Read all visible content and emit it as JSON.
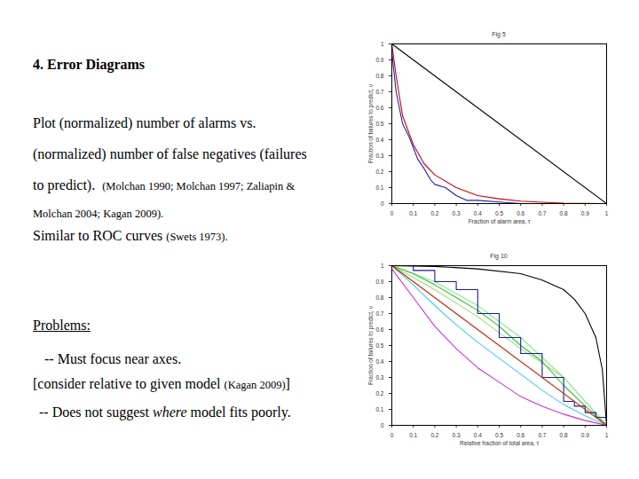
{
  "slide": {
    "heading": "4. Error Diagrams",
    "lines": [
      [
        {
          "text": "Plot (normalized) number of alarms vs."
        }
      ],
      [
        {
          "text": "(normalized) number of false negatives (failures"
        }
      ],
      [
        {
          "text": "to predict).  "
        },
        {
          "text": "(Molchan 1990; Molchan 1997; Zaliapin &",
          "small": true
        }
      ],
      [
        {
          "text": "Molchan 2004; Kagan 2009).",
          "small": true
        }
      ],
      [
        {
          "text": "Similar to ROC curves "
        },
        {
          "text": "(Swets 1973).",
          "small": true
        }
      ],
      [
        {
          "text": "Problems:",
          "underline": true
        }
      ],
      [
        {
          "text": "-- Must focus near axes."
        }
      ],
      [
        {
          "text": "[consider relative to given model "
        },
        {
          "text": "(Kagan 2009)",
          "small": true
        },
        {
          "text": "]"
        }
      ],
      [
        {
          "text": "-- Does not suggest "
        },
        {
          "text": "where",
          "italic": true
        },
        {
          "text": " model fits poorly."
        }
      ]
    ]
  },
  "chart_data": [
    {
      "type": "line",
      "title": "Fig 5",
      "x_label": "Fraction of alarm area, τ",
      "y_label": "Fraction of failures to predict, ν",
      "xlim": [
        0,
        1
      ],
      "ylim": [
        0,
        1
      ],
      "xticks": [
        0,
        0.1,
        0.2,
        0.3,
        0.4,
        0.5,
        0.6,
        0.7,
        0.8,
        0.9,
        1
      ],
      "yticks": [
        0,
        0.1,
        0.2,
        0.3,
        0.4,
        0.5,
        0.6,
        0.7,
        0.8,
        0.9,
        1
      ],
      "grid": false,
      "series": [
        {
          "color": "#000000",
          "x": [
            0,
            1
          ],
          "values": [
            1,
            0
          ]
        },
        {
          "color": "#cc0000",
          "x": [
            0,
            0.02,
            0.05,
            0.1,
            0.15,
            0.2,
            0.3,
            0.4,
            0.5,
            0.6,
            0.7,
            0.8,
            1
          ],
          "values": [
            1,
            0.8,
            0.55,
            0.37,
            0.25,
            0.18,
            0.1,
            0.05,
            0.03,
            0.015,
            0.008,
            0.003,
            0
          ]
        },
        {
          "color": "#1f1fb4",
          "x": [
            0,
            0.02,
            0.05,
            0.08,
            0.1,
            0.12,
            0.15,
            0.18,
            0.2,
            0.25,
            0.3,
            0.35,
            0.4,
            0.5,
            0.6,
            1
          ],
          "values": [
            0.95,
            0.7,
            0.5,
            0.42,
            0.35,
            0.28,
            0.22,
            0.15,
            0.12,
            0.1,
            0.05,
            0.02,
            0.02,
            0.01,
            0,
            0
          ]
        }
      ]
    },
    {
      "type": "line",
      "title": "Fig 10",
      "x_label": "Relative fraction of total area, τ",
      "y_label": "Fraction of failures to predict, ν",
      "xlim": [
        0,
        1
      ],
      "ylim": [
        0,
        1
      ],
      "xticks": [
        0,
        0.1,
        0.2,
        0.3,
        0.4,
        0.5,
        0.6,
        0.7,
        0.8,
        0.9,
        1
      ],
      "yticks": [
        0,
        0.1,
        0.2,
        0.3,
        0.4,
        0.5,
        0.6,
        0.7,
        0.8,
        0.9,
        1
      ],
      "grid": false,
      "series": [
        {
          "color": "#99dd77",
          "x": [
            0,
            0.2,
            0.4,
            0.6,
            0.8,
            0.9,
            1
          ],
          "values": [
            1,
            0.85,
            0.68,
            0.48,
            0.3,
            0.15,
            0
          ]
        },
        {
          "color": "#88ee88",
          "x": [
            0,
            0.2,
            0.4,
            0.6,
            0.8,
            1
          ],
          "values": [
            1,
            0.9,
            0.75,
            0.55,
            0.3,
            0
          ]
        },
        {
          "color": "#33bb33",
          "x": [
            0,
            0.1,
            0.2,
            0.3,
            0.4,
            0.5,
            0.6,
            0.7,
            0.8,
            0.9,
            1
          ],
          "values": [
            1,
            0.95,
            0.88,
            0.8,
            0.72,
            0.62,
            0.5,
            0.4,
            0.25,
            0.12,
            0
          ]
        },
        {
          "color": "#44ccee",
          "x": [
            0,
            0.1,
            0.2,
            0.3,
            0.4,
            0.5,
            0.6,
            0.7,
            0.8,
            0.9,
            1
          ],
          "values": [
            1,
            0.88,
            0.75,
            0.63,
            0.52,
            0.42,
            0.32,
            0.22,
            0.13,
            0.06,
            0
          ]
        },
        {
          "color": "#cc33cc",
          "x": [
            0,
            0.1,
            0.2,
            0.3,
            0.4,
            0.5,
            0.6,
            0.7,
            0.8,
            0.9,
            1
          ],
          "values": [
            0.98,
            0.8,
            0.62,
            0.48,
            0.36,
            0.27,
            0.18,
            0.12,
            0.07,
            0.03,
            0
          ]
        },
        {
          "color": "#1a1aa0",
          "line_style": "step",
          "x": [
            0,
            0.1,
            0.2,
            0.3,
            0.4,
            0.5,
            0.6,
            0.7,
            0.8,
            0.85,
            0.9,
            0.95,
            1
          ],
          "values": [
            1,
            0.97,
            0.9,
            0.85,
            0.7,
            0.55,
            0.45,
            0.3,
            0.15,
            0.12,
            0.08,
            0.05,
            0
          ]
        },
        {
          "color": "#cc2200",
          "x": [
            0,
            1
          ],
          "values": [
            1,
            0
          ]
        },
        {
          "color": "#000000",
          "x": [
            0,
            0.2,
            0.4,
            0.6,
            0.7,
            0.8,
            0.85,
            0.9,
            0.95,
            0.98,
            1
          ],
          "values": [
            1,
            0.995,
            0.98,
            0.95,
            0.91,
            0.85,
            0.79,
            0.7,
            0.55,
            0.35,
            0
          ]
        }
      ]
    }
  ]
}
